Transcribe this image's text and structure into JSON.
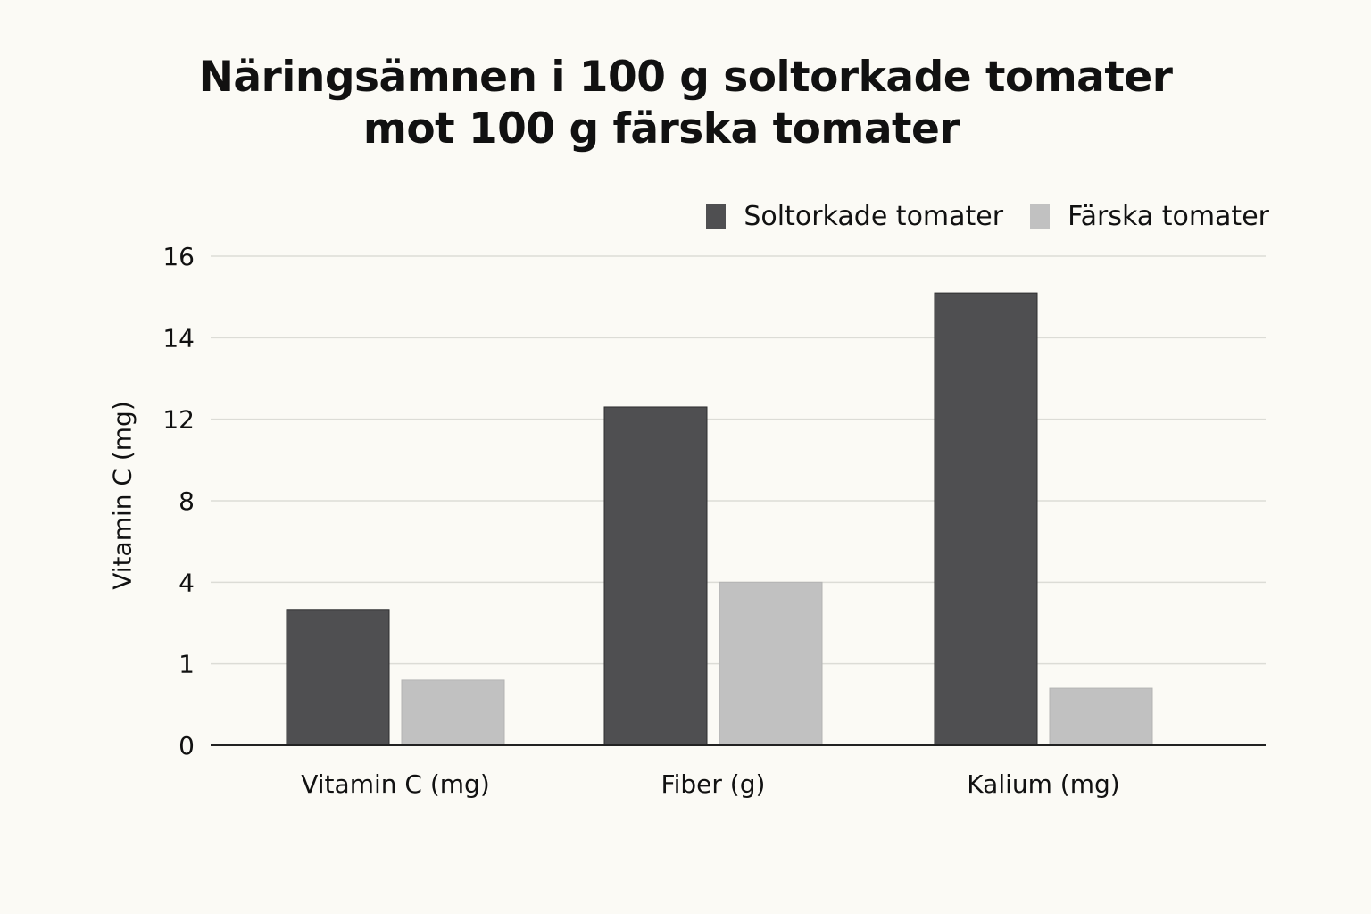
{
  "chart_data": {
    "type": "bar",
    "title_lines": [
      "Näringsämnen i 100 g soltorkade tomater",
      "mot 100 g färska tomater"
    ],
    "ylabel": "Vitamin C (mg)",
    "xlabel": "",
    "categories": [
      "Vitamin C (mg)",
      "Fiber (g)",
      "Kalium (mg)"
    ],
    "y_ticks": [
      "16",
      "14",
      "12",
      "8",
      "4",
      "1",
      "0"
    ],
    "series": [
      {
        "name": "Soltorkade tomater",
        "color": "#4f4f51",
        "values": [
          3,
          12.3,
          15.1
        ]
      },
      {
        "name": "Färska tomater",
        "color": "#c1c1c1",
        "values": [
          0.8,
          4,
          0.7
        ]
      }
    ],
    "ylim": [
      0,
      16
    ],
    "grid": true,
    "legend_position": "top-right"
  }
}
